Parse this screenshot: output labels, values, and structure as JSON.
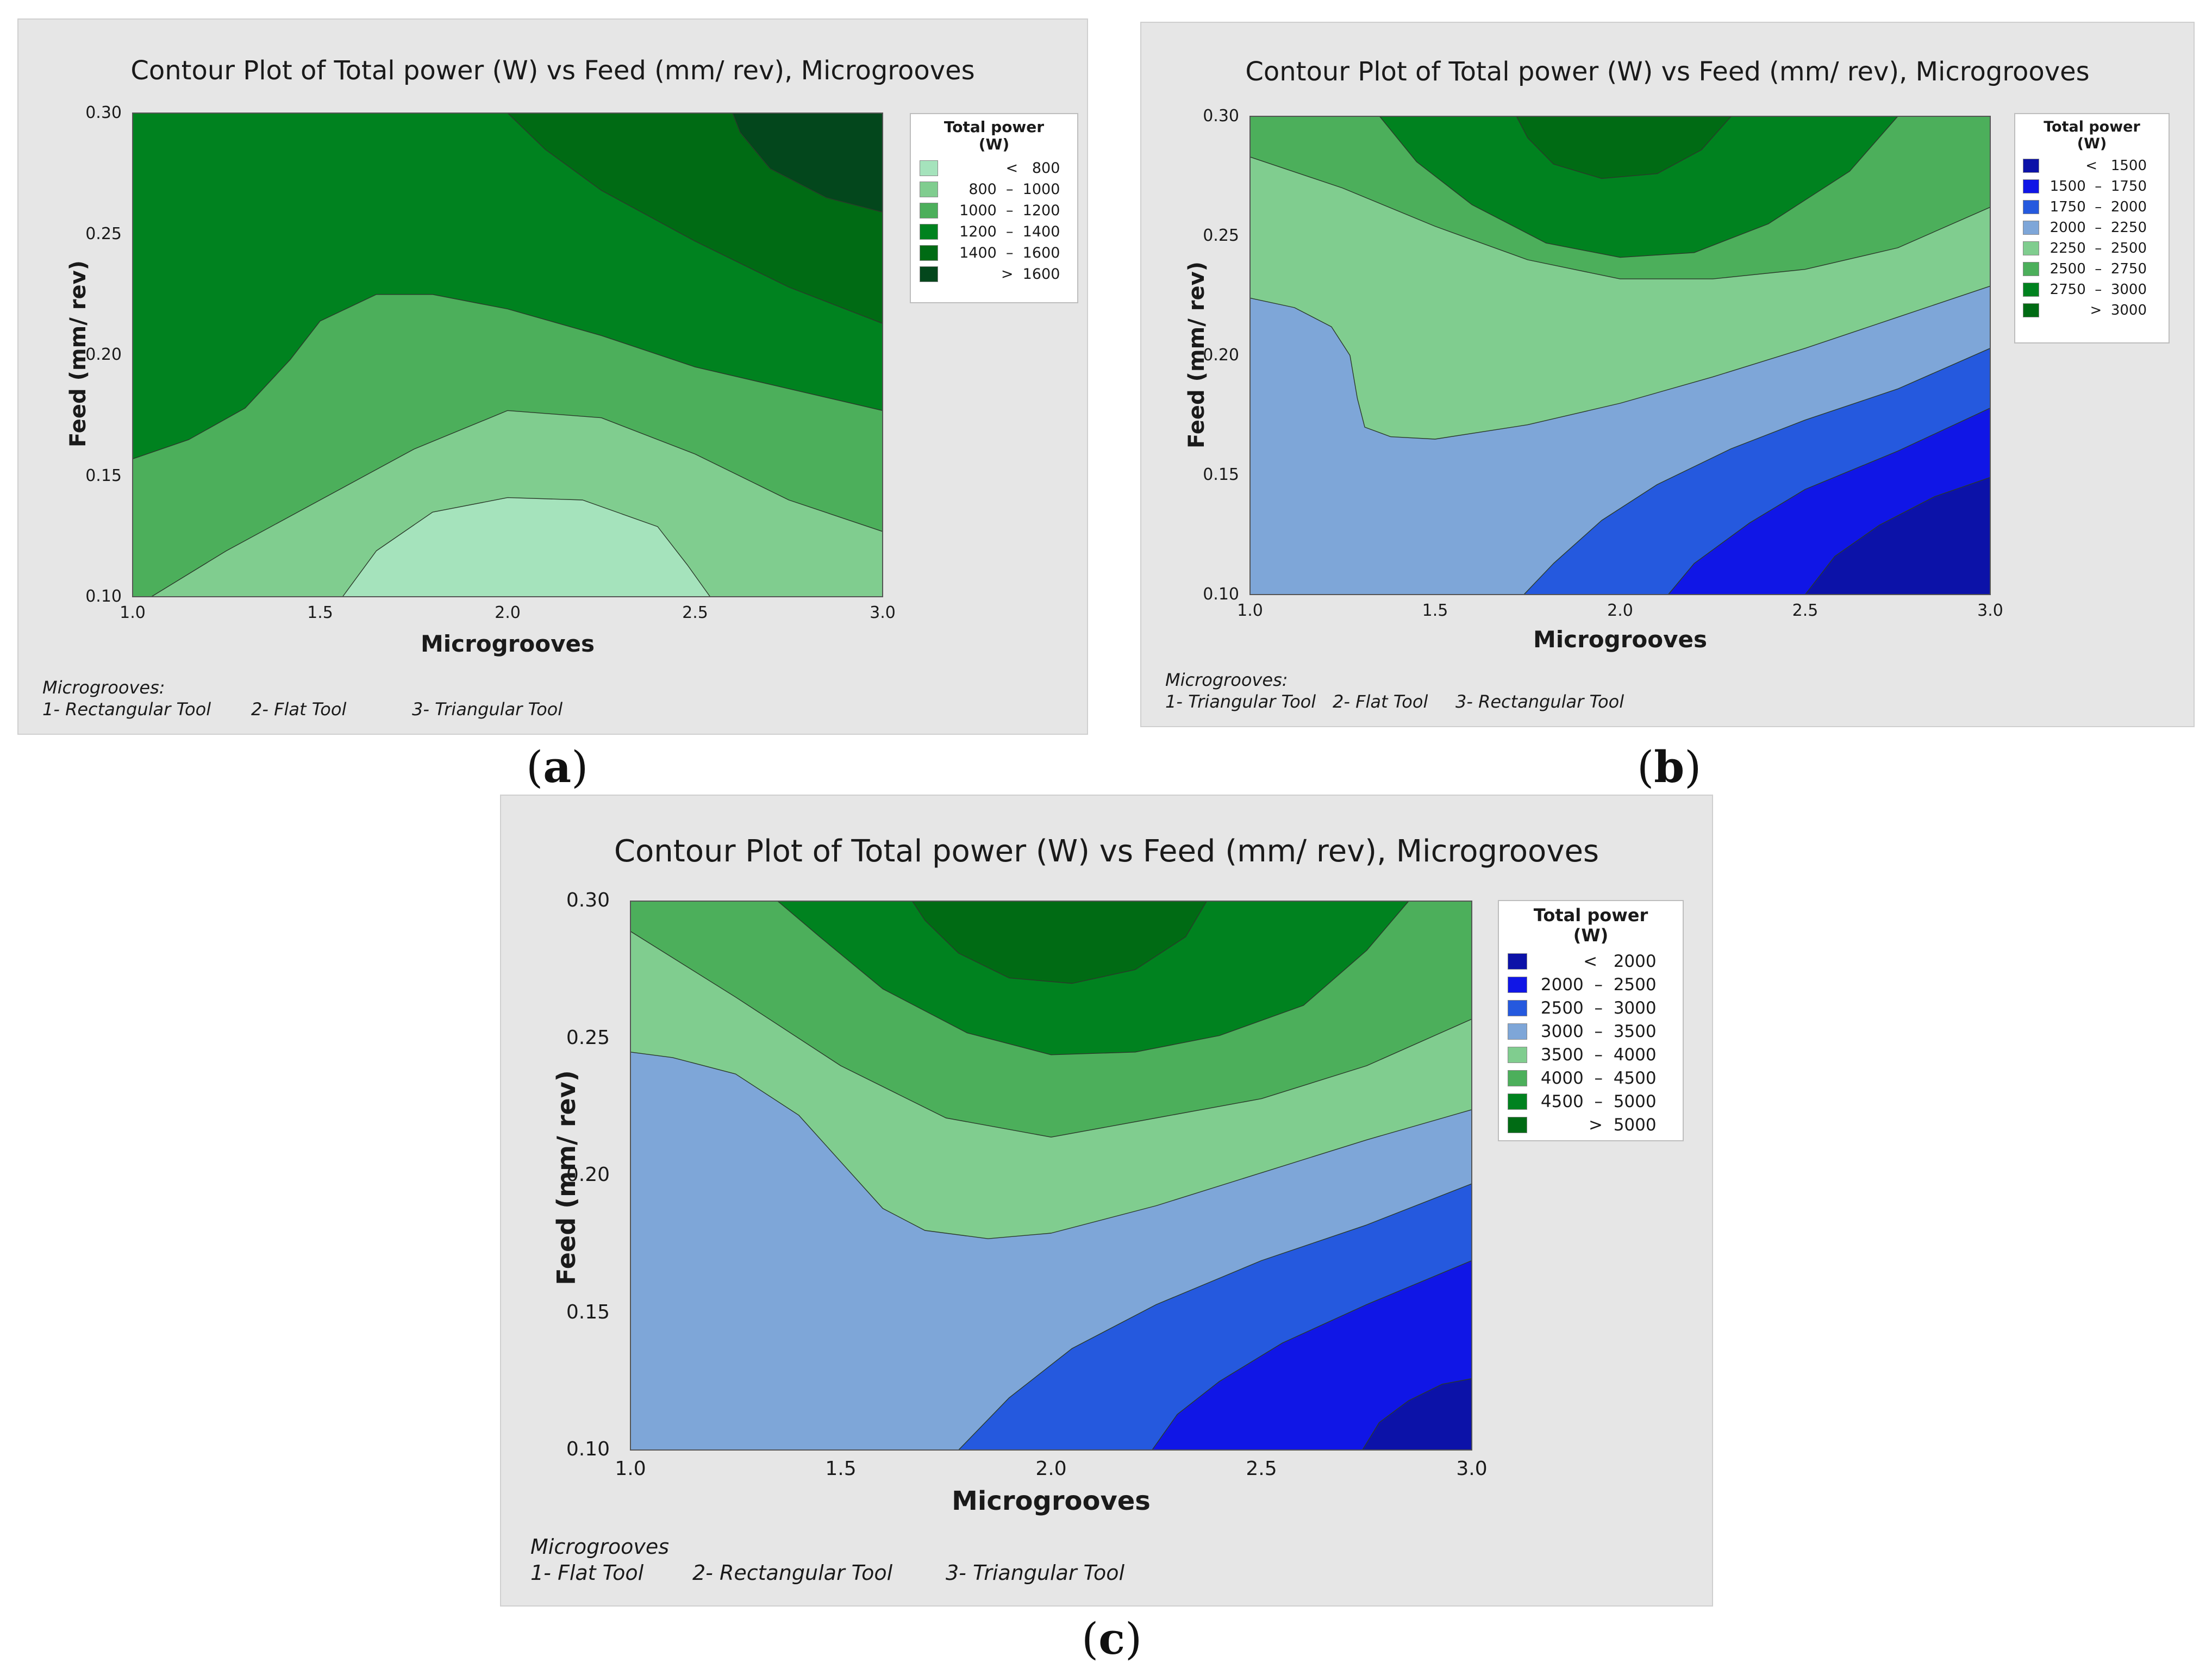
{
  "chart_data": [
    {
      "id": "a",
      "type": "contour",
      "title": "Contour Plot of Total power (W) vs Feed (mm/ rev), Microgrooves",
      "xlabel": "Microgrooves",
      "ylabel": "Feed (mm/ rev)",
      "xlim": [
        1.0,
        3.0
      ],
      "ylim": [
        0.1,
        0.3
      ],
      "xticks": [
        "1.0",
        "1.5",
        "2.0",
        "2.5",
        "3.0"
      ],
      "yticks": [
        "0.10",
        "0.15",
        "0.20",
        "0.25",
        "0.30"
      ],
      "legend_title_1": "Total power",
      "legend_title_2": "(W)",
      "legend_placement": "top-right",
      "legend": [
        {
          "label": "<   800",
          "color": "#a5e3bc"
        },
        {
          "label": "800  –  1000",
          "color": "#80cd8f"
        },
        {
          "label": "1000  –  1200",
          "color": "#4caf5b"
        },
        {
          "label": "1200  –  1400",
          "color": "#00821f"
        },
        {
          "label": "1400  –  1600",
          "color": "#006b14"
        },
        {
          "label": ">  1600",
          "color": "#03471c"
        }
      ],
      "regions": [
        {
          "band": "1200 – 1400",
          "color": "#00821f",
          "points": [
            [
              1,
              0.3
            ],
            [
              3,
              0.3
            ],
            [
              3,
              0.1
            ],
            [
              1,
              0.1
            ]
          ]
        },
        {
          "band": "1400 – 1600",
          "color": "#006b14",
          "points": [
            [
              2.0,
              0.3
            ],
            [
              3.0,
              0.3
            ],
            [
              3.0,
              0.213
            ],
            [
              2.75,
              0.228
            ],
            [
              2.5,
              0.247
            ],
            [
              2.25,
              0.268
            ],
            [
              2.1,
              0.285
            ]
          ]
        },
        {
          "band": "> 1600",
          "color": "#03471c",
          "points": [
            [
              2.6,
              0.3
            ],
            [
              3.0,
              0.3
            ],
            [
              3.0,
              0.259
            ],
            [
              2.85,
              0.265
            ],
            [
              2.7,
              0.277
            ],
            [
              2.62,
              0.292
            ]
          ]
        },
        {
          "band": "1000 – 1200",
          "color": "#4caf5b",
          "points": [
            [
              1.0,
              0.1
            ],
            [
              1.0,
              0.157
            ],
            [
              1.15,
              0.165
            ],
            [
              1.3,
              0.178
            ],
            [
              1.42,
              0.198
            ],
            [
              1.5,
              0.214
            ],
            [
              1.65,
              0.225
            ],
            [
              1.8,
              0.225
            ],
            [
              2.0,
              0.219
            ],
            [
              2.25,
              0.208
            ],
            [
              2.5,
              0.195
            ],
            [
              2.75,
              0.186
            ],
            [
              3.0,
              0.177
            ],
            [
              3.0,
              0.1
            ]
          ]
        },
        {
          "band": "800 – 1000",
          "color": "#80cd8f",
          "points": [
            [
              1.05,
              0.1
            ],
            [
              1.25,
              0.119
            ],
            [
              1.5,
              0.14
            ],
            [
              1.75,
              0.161
            ],
            [
              2.0,
              0.177
            ],
            [
              2.25,
              0.174
            ],
            [
              2.5,
              0.159
            ],
            [
              2.75,
              0.14
            ],
            [
              3.0,
              0.127
            ],
            [
              3.0,
              0.1
            ]
          ]
        },
        {
          "band": "< 800",
          "color": "#a5e3bc",
          "points": [
            [
              1.56,
              0.1
            ],
            [
              1.65,
              0.119
            ],
            [
              1.8,
              0.135
            ],
            [
              2.0,
              0.141
            ],
            [
              2.2,
              0.14
            ],
            [
              2.4,
              0.129
            ],
            [
              2.48,
              0.113
            ],
            [
              2.54,
              0.1
            ]
          ]
        }
      ],
      "note_title": "Microgrooves:",
      "note_items": [
        "1- Rectangular Tool",
        "2- Flat Tool",
        "3- Triangular Tool"
      ],
      "caption_label": "a"
    },
    {
      "id": "b",
      "type": "contour",
      "title": "Contour Plot of Total power (W) vs Feed (mm/ rev), Microgrooves",
      "xlabel": "Microgrooves",
      "ylabel": "Feed (mm/ rev)",
      "xlim": [
        1.0,
        3.0
      ],
      "ylim": [
        0.1,
        0.3
      ],
      "xticks": [
        "1.0",
        "1.5",
        "2.0",
        "2.5",
        "3.0"
      ],
      "yticks": [
        "0.10",
        "0.15",
        "0.20",
        "0.25",
        "0.30"
      ],
      "legend_title_1": "Total power",
      "legend_title_2": "(W)",
      "legend_placement": "top-right",
      "legend": [
        {
          "label": "<   1500",
          "color": "#0c12a8"
        },
        {
          "label": "1500  –  1750",
          "color": "#1016e6"
        },
        {
          "label": "1750  –  2000",
          "color": "#2559de"
        },
        {
          "label": "2000  –  2250",
          "color": "#7ea6d8"
        },
        {
          "label": "2250  –  2500",
          "color": "#80cd8f"
        },
        {
          "label": "2500  –  2750",
          "color": "#4caf5b"
        },
        {
          "label": "2750  –  3000",
          "color": "#00821f"
        },
        {
          "label": ">  3000",
          "color": "#006b14"
        }
      ],
      "regions": [
        {
          "band": "2000 – 2250",
          "color": "#7ea6d8",
          "points": [
            [
              1,
              0.3
            ],
            [
              3,
              0.3
            ],
            [
              3,
              0.1
            ],
            [
              1,
              0.1
            ]
          ]
        },
        {
          "band": "2250 – 2500",
          "color": "#80cd8f",
          "points": [
            [
              1.0,
              0.3
            ],
            [
              3.0,
              0.3
            ],
            [
              3.0,
              0.229
            ],
            [
              2.75,
              0.216
            ],
            [
              2.5,
              0.203
            ],
            [
              2.25,
              0.191
            ],
            [
              2.0,
              0.18
            ],
            [
              1.75,
              0.171
            ],
            [
              1.5,
              0.165
            ],
            [
              1.38,
              0.166
            ],
            [
              1.31,
              0.17
            ],
            [
              1.29,
              0.182
            ],
            [
              1.27,
              0.2
            ],
            [
              1.22,
              0.212
            ],
            [
              1.12,
              0.22
            ],
            [
              1.0,
              0.224
            ]
          ]
        },
        {
          "band": "2500 – 2750",
          "color": "#4caf5b",
          "points": [
            [
              1.0,
              0.3
            ],
            [
              3.0,
              0.3
            ],
            [
              3.0,
              0.262
            ],
            [
              2.75,
              0.245
            ],
            [
              2.5,
              0.236
            ],
            [
              2.25,
              0.232
            ],
            [
              2.0,
              0.232
            ],
            [
              1.75,
              0.24
            ],
            [
              1.5,
              0.254
            ],
            [
              1.25,
              0.27
            ],
            [
              1.0,
              0.283
            ]
          ]
        },
        {
          "band": "2750 – 3000",
          "color": "#00821f",
          "points": [
            [
              1.35,
              0.3
            ],
            [
              2.75,
              0.3
            ],
            [
              2.62,
              0.277
            ],
            [
              2.4,
              0.255
            ],
            [
              2.2,
              0.243
            ],
            [
              2.0,
              0.241
            ],
            [
              1.8,
              0.247
            ],
            [
              1.6,
              0.263
            ],
            [
              1.45,
              0.281
            ]
          ]
        },
        {
          "band": "> 3000",
          "color": "#006b14",
          "points": [
            [
              1.72,
              0.3
            ],
            [
              2.3,
              0.3
            ],
            [
              2.22,
              0.286
            ],
            [
              2.1,
              0.276
            ],
            [
              1.95,
              0.274
            ],
            [
              1.82,
              0.28
            ],
            [
              1.75,
              0.291
            ]
          ]
        },
        {
          "band": "1750 – 2000",
          "color": "#2559de",
          "points": [
            [
              1.74,
              0.1
            ],
            [
              1.82,
              0.113
            ],
            [
              1.95,
              0.131
            ],
            [
              2.1,
              0.146
            ],
            [
              2.3,
              0.161
            ],
            [
              2.5,
              0.173
            ],
            [
              2.75,
              0.186
            ],
            [
              3.0,
              0.203
            ],
            [
              3.0,
              0.1
            ]
          ]
        },
        {
          "band": "1500 – 1750",
          "color": "#1016e6",
          "points": [
            [
              2.13,
              0.1
            ],
            [
              2.2,
              0.113
            ],
            [
              2.35,
              0.13
            ],
            [
              2.5,
              0.144
            ],
            [
              2.75,
              0.16
            ],
            [
              3.0,
              0.178
            ],
            [
              3.0,
              0.1
            ]
          ]
        },
        {
          "band": "< 1500",
          "color": "#0c12a8",
          "points": [
            [
              2.5,
              0.1
            ],
            [
              2.58,
              0.116
            ],
            [
              2.7,
              0.129
            ],
            [
              2.85,
              0.141
            ],
            [
              3.0,
              0.149
            ],
            [
              3.0,
              0.1
            ]
          ]
        }
      ],
      "note_title": "Microgrooves:",
      "note_items": [
        "1- Triangular Tool",
        "2- Flat Tool",
        "3- Rectangular Tool"
      ],
      "caption_label": "b"
    },
    {
      "id": "c",
      "type": "contour",
      "title": "Contour Plot of Total power (W) vs Feed (mm/ rev), Microgrooves",
      "xlabel": "Microgrooves",
      "ylabel": "Feed (mm/ rev)",
      "xlim": [
        1.0,
        3.0
      ],
      "ylim": [
        0.1,
        0.3
      ],
      "xticks": [
        "1.0",
        "1.5",
        "2.0",
        "2.5",
        "3.0"
      ],
      "yticks": [
        "0.10",
        "0.15",
        "0.20",
        "0.25",
        "0.30"
      ],
      "legend_title_1": "Total power",
      "legend_title_2": "(W)",
      "legend_placement": "top-right",
      "legend": [
        {
          "label": "<   2000",
          "color": "#0c12a8"
        },
        {
          "label": "2000  –  2500",
          "color": "#1016e6"
        },
        {
          "label": "2500  –  3000",
          "color": "#2559de"
        },
        {
          "label": "3000  –  3500",
          "color": "#7ea6d8"
        },
        {
          "label": "3500  –  4000",
          "color": "#80cd8f"
        },
        {
          "label": "4000  –  4500",
          "color": "#4caf5b"
        },
        {
          "label": "4500  –  5000",
          "color": "#00821f"
        },
        {
          "label": ">  5000",
          "color": "#006b14"
        }
      ],
      "regions": [
        {
          "band": "3000 – 3500",
          "color": "#7ea6d8",
          "points": [
            [
              1,
              0.3
            ],
            [
              3,
              0.3
            ],
            [
              3,
              0.1
            ],
            [
              1,
              0.1
            ]
          ]
        },
        {
          "band": "3500 – 4000",
          "color": "#80cd8f",
          "points": [
            [
              1.0,
              0.3
            ],
            [
              3.0,
              0.3
            ],
            [
              3.0,
              0.224
            ],
            [
              2.75,
              0.213
            ],
            [
              2.5,
              0.201
            ],
            [
              2.25,
              0.189
            ],
            [
              2.0,
              0.179
            ],
            [
              1.85,
              0.177
            ],
            [
              1.7,
              0.18
            ],
            [
              1.6,
              0.188
            ],
            [
              1.5,
              0.205
            ],
            [
              1.4,
              0.222
            ],
            [
              1.25,
              0.237
            ],
            [
              1.1,
              0.243
            ],
            [
              1.0,
              0.245
            ]
          ]
        },
        {
          "band": "4000 – 4500",
          "color": "#4caf5b",
          "points": [
            [
              1.0,
              0.3
            ],
            [
              3.0,
              0.3
            ],
            [
              3.0,
              0.257
            ],
            [
              2.75,
              0.24
            ],
            [
              2.5,
              0.228
            ],
            [
              2.25,
              0.221
            ],
            [
              2.0,
              0.214
            ],
            [
              1.75,
              0.221
            ],
            [
              1.5,
              0.24
            ],
            [
              1.25,
              0.265
            ],
            [
              1.0,
              0.289
            ]
          ]
        },
        {
          "band": "4500 – 5000",
          "color": "#00821f",
          "points": [
            [
              1.35,
              0.3
            ],
            [
              2.85,
              0.3
            ],
            [
              2.75,
              0.282
            ],
            [
              2.6,
              0.262
            ],
            [
              2.4,
              0.251
            ],
            [
              2.2,
              0.245
            ],
            [
              2.0,
              0.244
            ],
            [
              1.8,
              0.252
            ],
            [
              1.6,
              0.268
            ],
            [
              1.45,
              0.287
            ]
          ]
        },
        {
          "band": "> 5000",
          "color": "#006b14",
          "points": [
            [
              1.67,
              0.3
            ],
            [
              2.37,
              0.3
            ],
            [
              2.32,
              0.287
            ],
            [
              2.2,
              0.275
            ],
            [
              2.05,
              0.27
            ],
            [
              1.9,
              0.272
            ],
            [
              1.78,
              0.281
            ],
            [
              1.7,
              0.293
            ]
          ]
        },
        {
          "band": "2500 – 3000",
          "color": "#2559de",
          "points": [
            [
              1.78,
              0.1
            ],
            [
              1.9,
              0.119
            ],
            [
              2.05,
              0.137
            ],
            [
              2.25,
              0.153
            ],
            [
              2.5,
              0.169
            ],
            [
              2.75,
              0.182
            ],
            [
              3.0,
              0.197
            ],
            [
              3.0,
              0.1
            ]
          ]
        },
        {
          "band": "2000 – 2500",
          "color": "#1016e6",
          "points": [
            [
              2.24,
              0.1
            ],
            [
              2.3,
              0.113
            ],
            [
              2.4,
              0.125
            ],
            [
              2.55,
              0.139
            ],
            [
              2.75,
              0.153
            ],
            [
              3.0,
              0.169
            ],
            [
              3.0,
              0.1
            ]
          ]
        },
        {
          "band": "< 2000",
          "color": "#0c12a8",
          "points": [
            [
              2.74,
              0.1
            ],
            [
              2.78,
              0.11
            ],
            [
              2.85,
              0.118
            ],
            [
              2.93,
              0.124
            ],
            [
              3.0,
              0.126
            ],
            [
              3.0,
              0.1
            ]
          ]
        }
      ],
      "note_title": "Microgrooves",
      "note_items": [
        "1- Flat Tool",
        "2- Rectangular Tool",
        "3- Triangular Tool"
      ],
      "caption_label": "c"
    }
  ]
}
